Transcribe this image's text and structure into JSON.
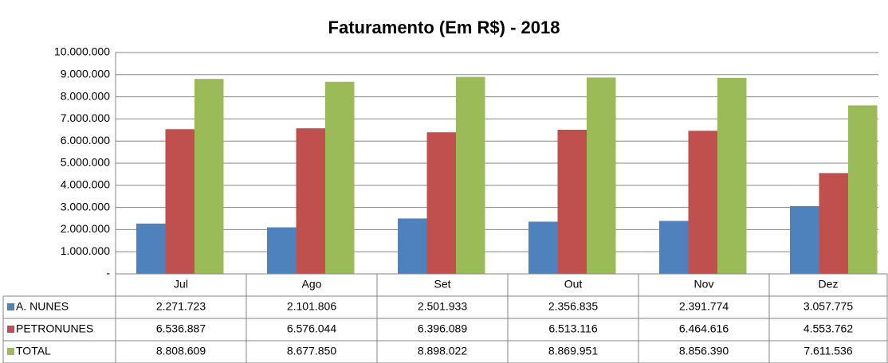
{
  "chart_data": {
    "type": "bar",
    "title": "Faturamento (Em R$) - 2018",
    "categories": [
      "Jul",
      "Ago",
      "Set",
      "Out",
      "Nov",
      "Dez"
    ],
    "series": [
      {
        "name": "A. NUNES",
        "color": "#4f81bd",
        "values": [
          2271723,
          2101806,
          2501933,
          2356835,
          2391774,
          3057775
        ],
        "value_labels": [
          "2.271.723",
          "2.101.806",
          "2.501.933",
          "2.356.835",
          "2.391.774",
          "3.057.775"
        ]
      },
      {
        "name": "PETRONUNES",
        "color": "#c0504d",
        "values": [
          6536887,
          6576044,
          6396089,
          6513116,
          6464616,
          4553762
        ],
        "value_labels": [
          "6.536.887",
          "6.576.044",
          "6.396.089",
          "6.513.116",
          "6.464.616",
          "4.553.762"
        ]
      },
      {
        "name": "TOTAL",
        "color": "#9bbb59",
        "values": [
          8808609,
          8677850,
          8898022,
          8869951,
          8856390,
          7611536
        ],
        "value_labels": [
          "8.808.609",
          "8.677.850",
          "8.898.022",
          "8.869.951",
          "8.856.390",
          "7.611.536"
        ]
      }
    ],
    "ylim": [
      0,
      10000000
    ],
    "yticks": [
      {
        "value": 0,
        "label": "-"
      },
      {
        "value": 1000000,
        "label": "1.000.000"
      },
      {
        "value": 2000000,
        "label": "2.000.000"
      },
      {
        "value": 3000000,
        "label": "3.000.000"
      },
      {
        "value": 4000000,
        "label": "4.000.000"
      },
      {
        "value": 5000000,
        "label": "5.000.000"
      },
      {
        "value": 6000000,
        "label": "6.000.000"
      },
      {
        "value": 7000000,
        "label": "7.000.000"
      },
      {
        "value": 8000000,
        "label": "8.000.000"
      },
      {
        "value": 9000000,
        "label": "9.000.000"
      },
      {
        "value": 10000000,
        "label": "10.000.000"
      }
    ],
    "grid": true
  }
}
